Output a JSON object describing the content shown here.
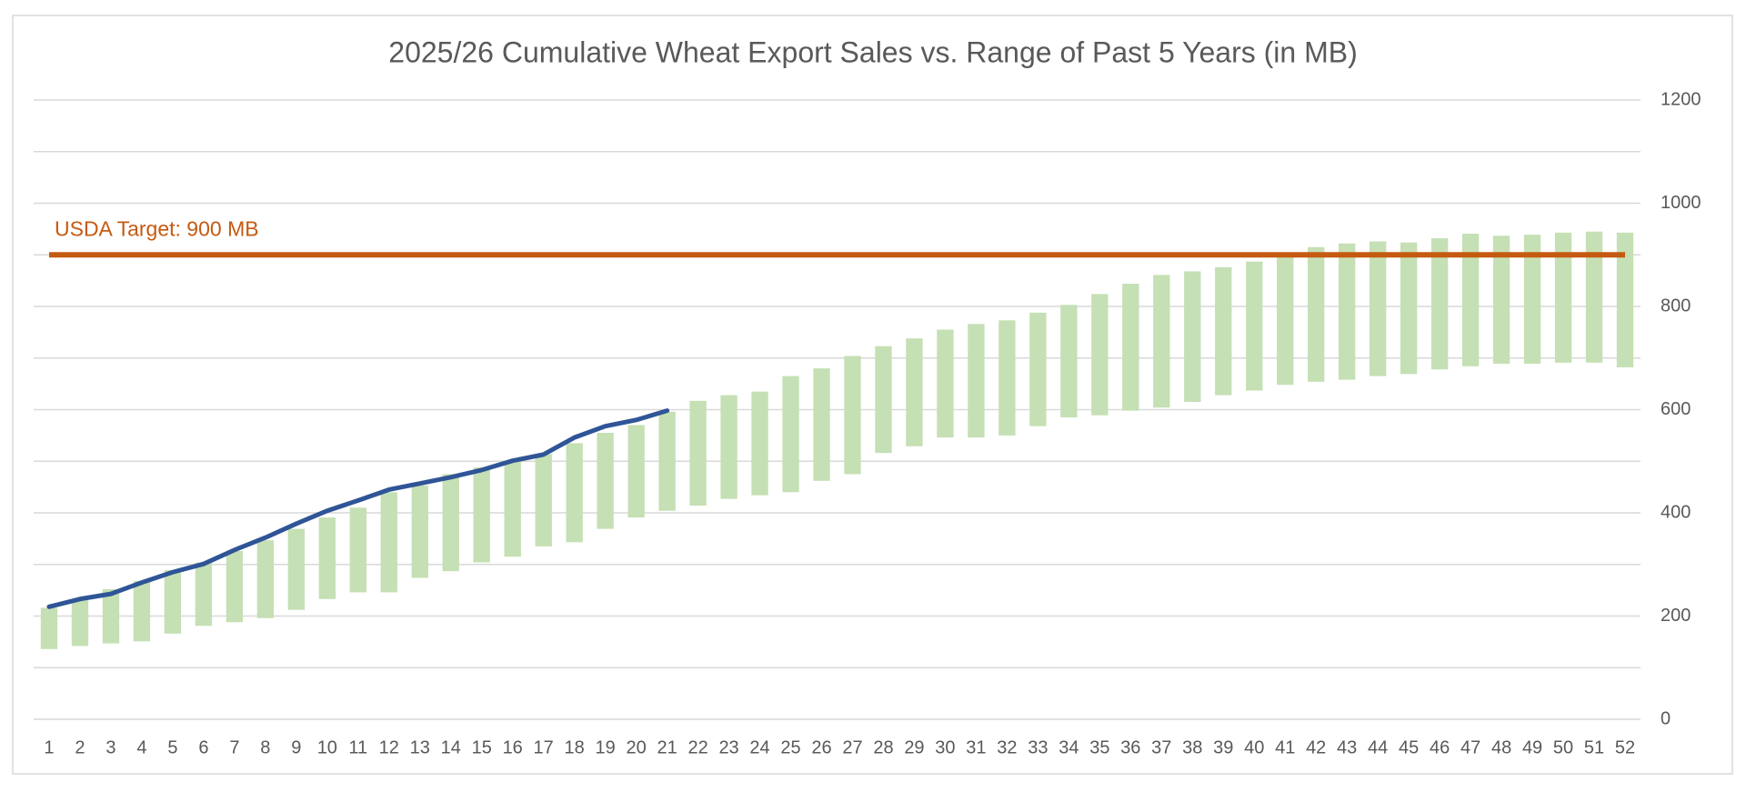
{
  "chart_data": {
    "type": "floating-bar",
    "title": "2025/26 Cumulative Wheat Export Sales vs. Range of Past 5 Years (in MB)",
    "categories": [
      1,
      2,
      3,
      4,
      5,
      6,
      7,
      8,
      9,
      10,
      11,
      12,
      13,
      14,
      15,
      16,
      17,
      18,
      19,
      20,
      21,
      22,
      23,
      24,
      25,
      26,
      27,
      28,
      29,
      30,
      31,
      32,
      33,
      34,
      35,
      36,
      37,
      38,
      39,
      40,
      41,
      42,
      43,
      44,
      45,
      46,
      47,
      48,
      49,
      50,
      51,
      52
    ],
    "range_color": "#c5e0b4",
    "range_low": [
      136,
      142,
      147,
      151,
      166,
      181,
      188,
      196,
      212,
      233,
      246,
      246,
      274,
      287,
      304,
      315,
      335,
      343,
      369,
      391,
      404,
      414,
      427,
      434,
      440,
      462,
      475,
      516,
      529,
      546,
      546,
      550,
      568,
      585,
      589,
      598,
      604,
      615,
      628,
      637,
      648,
      654,
      658,
      665,
      669,
      678,
      684,
      689,
      689,
      691,
      691,
      682
    ],
    "range_high": [
      216,
      231,
      252,
      268,
      289,
      304,
      326,
      347,
      369,
      391,
      410,
      440,
      453,
      475,
      488,
      501,
      514,
      535,
      555,
      570,
      596,
      617,
      628,
      635,
      665,
      680,
      704,
      723,
      738,
      755,
      766,
      773,
      788,
      803,
      824,
      844,
      861,
      868,
      876,
      887,
      898,
      915,
      922,
      926,
      924,
      932,
      941,
      937,
      939,
      943,
      945,
      943
    ],
    "line": {
      "color": "#2f5597",
      "values": [
        218,
        233,
        243,
        265,
        285,
        301,
        328,
        352,
        379,
        404,
        424,
        445,
        457,
        469,
        483,
        501,
        513,
        546,
        568,
        580,
        598,
        null,
        null,
        null,
        null,
        null,
        null,
        null,
        null,
        null,
        null,
        null,
        null,
        null,
        null,
        null,
        null,
        null,
        null,
        null,
        null,
        null,
        null,
        null,
        null,
        null,
        null,
        null,
        null,
        null,
        null,
        null
      ]
    },
    "target": {
      "value": 900,
      "label": "USDA Target: 900 MB",
      "color": "#c55a11"
    },
    "ylim": [
      0,
      1200
    ],
    "yticks": [
      0,
      200,
      400,
      600,
      800,
      1000,
      1200
    ],
    "minor_gridlines": [
      100,
      300,
      500,
      700,
      900,
      1100
    ],
    "grid": true,
    "y_axis_side": "right"
  }
}
